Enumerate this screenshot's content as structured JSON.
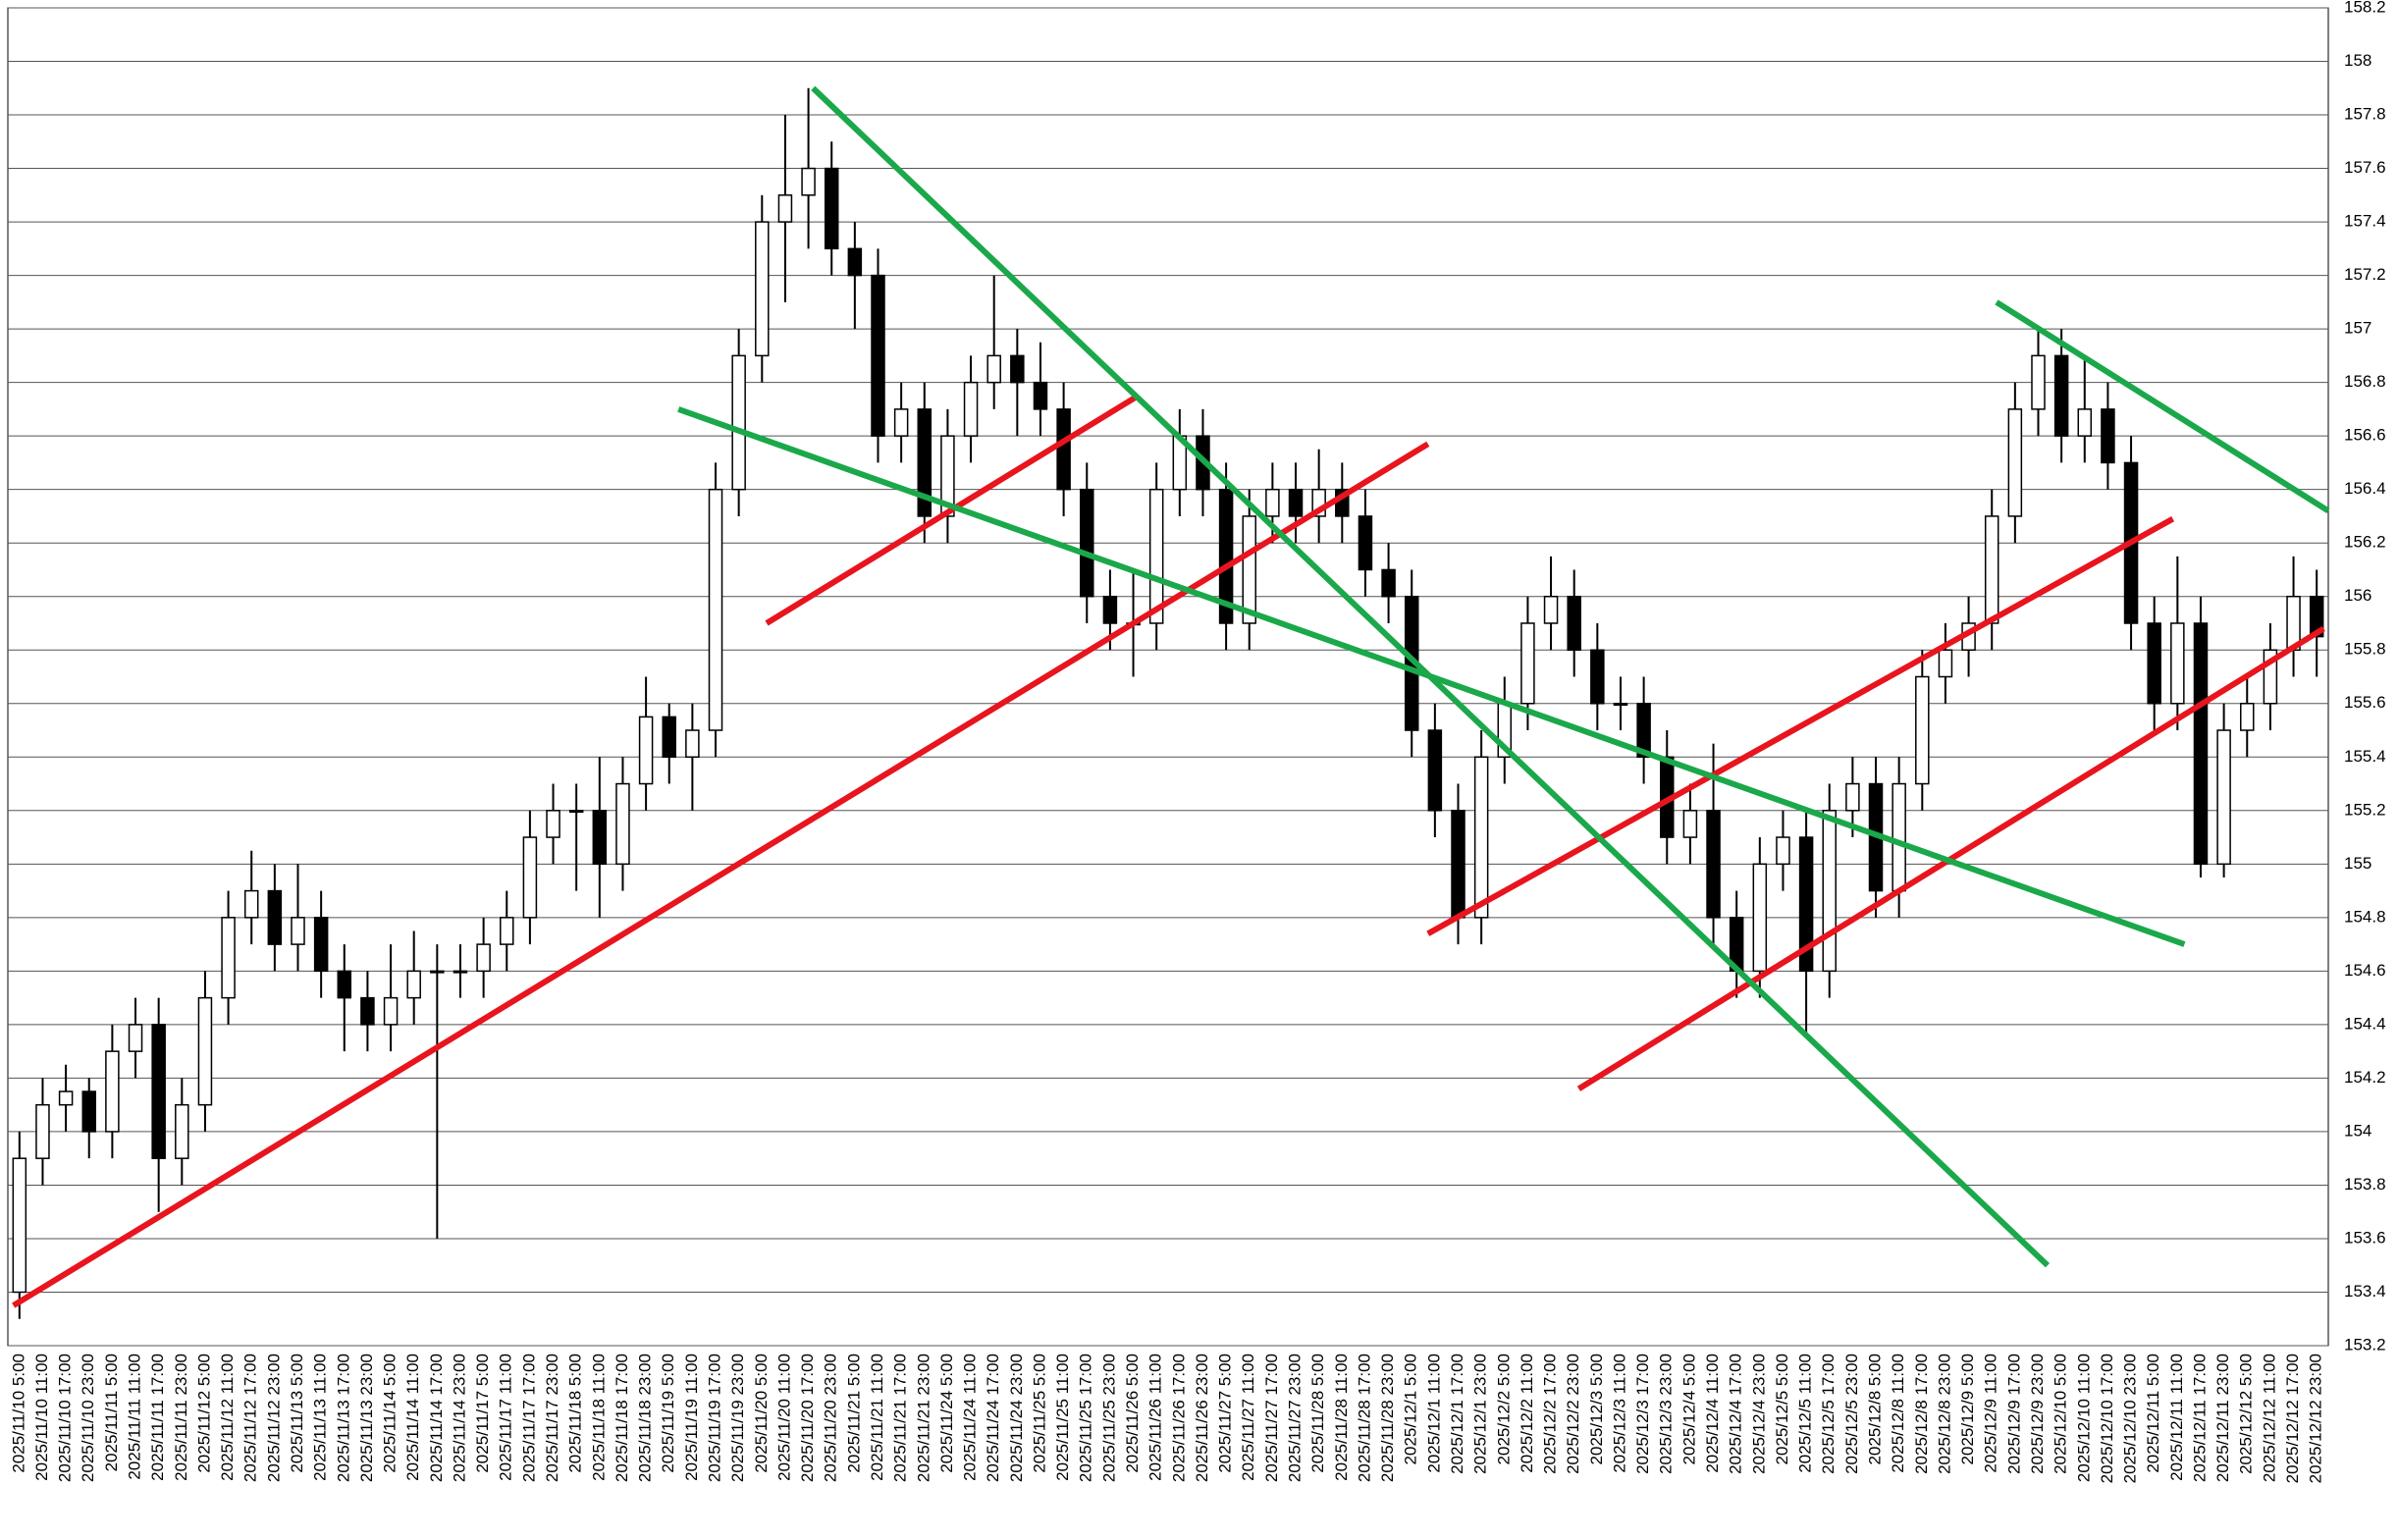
{
  "chart_data": {
    "type": "candlestick",
    "categories": [
      "2025/11/10 5:00",
      "2025/11/10 11:00",
      "2025/11/10 17:00",
      "2025/11/10 23:00",
      "2025/11/11 5:00",
      "2025/11/11 11:00",
      "2025/11/11 17:00",
      "2025/11/11 23:00",
      "2025/11/12 5:00",
      "2025/11/12 11:00",
      "2025/11/12 17:00",
      "2025/11/12 23:00",
      "2025/11/13 5:00",
      "2025/11/13 11:00",
      "2025/11/13 17:00",
      "2025/11/13 23:00",
      "2025/11/14 5:00",
      "2025/11/14 11:00",
      "2025/11/14 17:00",
      "2025/11/14 23:00",
      "2025/11/17 5:00",
      "2025/11/17 11:00",
      "2025/11/17 17:00",
      "2025/11/17 23:00",
      "2025/11/18 5:00",
      "2025/11/18 11:00",
      "2025/11/18 17:00",
      "2025/11/18 23:00",
      "2025/11/19 5:00",
      "2025/11/19 11:00",
      "2025/11/19 17:00",
      "2025/11/19 23:00",
      "2025/11/20 5:00",
      "2025/11/20 11:00",
      "2025/11/20 17:00",
      "2025/11/20 23:00",
      "2025/11/21 5:00",
      "2025/11/21 11:00",
      "2025/11/21 17:00",
      "2025/11/21 23:00",
      "2025/11/24 5:00",
      "2025/11/24 11:00",
      "2025/11/24 17:00",
      "2025/11/24 23:00",
      "2025/11/25 5:00",
      "2025/11/25 11:00",
      "2025/11/25 17:00",
      "2025/11/25 23:00",
      "2025/11/26 5:00",
      "2025/11/26 11:00",
      "2025/11/26 17:00",
      "2025/11/26 23:00",
      "2025/11/27 5:00",
      "2025/11/27 11:00",
      "2025/11/27 17:00",
      "2025/11/27 23:00",
      "2025/11/28 5:00",
      "2025/11/28 11:00",
      "2025/11/28 17:00",
      "2025/11/28 23:00",
      "2025/12/1 5:00",
      "2025/12/1 11:00",
      "2025/12/1 17:00",
      "2025/12/1 23:00",
      "2025/12/2 5:00",
      "2025/12/2 11:00",
      "2025/12/2 17:00",
      "2025/12/2 23:00",
      "2025/12/3 5:00",
      "2025/12/3 11:00",
      "2025/12/3 17:00",
      "2025/12/3 23:00",
      "2025/12/4 5:00",
      "2025/12/4 11:00",
      "2025/12/4 17:00",
      "2025/12/4 23:00",
      "2025/12/5 5:00",
      "2025/12/5 11:00",
      "2025/12/5 17:00",
      "2025/12/5 23:00",
      "2025/12/8 5:00",
      "2025/12/8 11:00",
      "2025/12/8 17:00",
      "2025/12/8 23:00",
      "2025/12/9 5:00",
      "2025/12/9 11:00",
      "2025/12/9 17:00",
      "2025/12/9 23:00",
      "2025/12/10 5:00",
      "2025/12/10 11:00",
      "2025/12/10 17:00",
      "2025/12/10 23:00",
      "2025/12/11 5:00",
      "2025/12/11 11:00",
      "2025/12/11 17:00",
      "2025/12/11 23:00",
      "2025/12/12 5:00",
      "2025/12/12 11:00",
      "2025/12/12 17:00",
      "2025/12/12 23:00"
    ],
    "open": [
      153.4,
      153.9,
      154.1,
      154.15,
      154.0,
      154.3,
      154.4,
      153.9,
      154.1,
      154.5,
      154.8,
      154.9,
      154.7,
      154.8,
      154.6,
      154.5,
      154.4,
      154.5,
      154.6,
      154.6,
      154.6,
      154.7,
      154.8,
      155.1,
      155.2,
      155.2,
      155.0,
      155.3,
      155.55,
      155.4,
      155.5,
      156.4,
      156.9,
      157.4,
      157.5,
      157.6,
      157.3,
      157.2,
      156.6,
      156.7,
      156.3,
      156.6,
      156.8,
      156.9,
      156.8,
      156.7,
      156.4,
      156.0,
      155.9,
      155.9,
      156.4,
      156.6,
      156.4,
      155.9,
      156.3,
      156.4,
      156.3,
      156.4,
      156.3,
      156.1,
      156.0,
      155.5,
      155.2,
      154.8,
      155.4,
      155.6,
      155.9,
      156.0,
      155.8,
      155.6,
      155.6,
      155.4,
      155.1,
      155.2,
      154.8,
      154.6,
      155.0,
      155.1,
      154.6,
      155.2,
      155.3,
      154.9,
      155.3,
      155.7,
      155.8,
      155.9,
      156.3,
      156.7,
      156.9,
      156.6,
      156.7,
      156.5,
      155.9,
      155.6,
      155.9,
      155.0,
      155.5,
      155.6,
      155.8,
      156.0
    ],
    "high": [
      154.0,
      154.2,
      154.25,
      154.2,
      154.4,
      154.5,
      154.5,
      154.2,
      154.6,
      154.9,
      155.05,
      155.0,
      155.0,
      154.9,
      154.7,
      154.6,
      154.7,
      154.75,
      154.7,
      154.7,
      154.8,
      154.9,
      155.2,
      155.3,
      155.3,
      155.4,
      155.4,
      155.7,
      155.6,
      155.6,
      156.5,
      157.0,
      157.5,
      157.8,
      157.9,
      157.7,
      157.4,
      157.3,
      156.8,
      156.8,
      156.7,
      156.9,
      157.2,
      157.0,
      156.95,
      156.8,
      156.5,
      156.1,
      156.1,
      156.5,
      156.7,
      156.7,
      156.5,
      156.4,
      156.5,
      156.5,
      156.55,
      156.5,
      156.4,
      156.2,
      156.1,
      155.6,
      155.3,
      155.5,
      155.7,
      156.0,
      156.15,
      156.1,
      155.9,
      155.7,
      155.7,
      155.5,
      155.3,
      155.45,
      154.9,
      155.1,
      155.2,
      155.2,
      155.3,
      155.4,
      155.4,
      155.4,
      155.8,
      155.9,
      156.0,
      156.4,
      156.8,
      157.0,
      157.0,
      156.9,
      156.8,
      156.6,
      156.0,
      156.15,
      156.0,
      155.6,
      155.7,
      155.9,
      156.15,
      156.1
    ],
    "low": [
      153.3,
      153.8,
      154.0,
      153.9,
      153.9,
      154.2,
      153.7,
      153.8,
      154.0,
      154.4,
      154.7,
      154.6,
      154.6,
      154.5,
      154.3,
      154.3,
      154.3,
      154.4,
      153.6,
      154.5,
      154.5,
      154.6,
      154.7,
      155.0,
      154.9,
      154.8,
      154.9,
      155.2,
      155.3,
      155.2,
      155.4,
      156.3,
      156.8,
      157.1,
      157.3,
      157.2,
      157.0,
      156.5,
      156.5,
      156.2,
      156.2,
      156.5,
      156.7,
      156.6,
      156.6,
      156.3,
      155.9,
      155.8,
      155.7,
      155.8,
      156.3,
      156.3,
      155.8,
      155.8,
      156.2,
      156.2,
      156.2,
      156.2,
      156.0,
      155.9,
      155.4,
      155.1,
      154.7,
      154.7,
      155.3,
      155.5,
      155.8,
      155.7,
      155.5,
      155.5,
      155.3,
      155.0,
      155.0,
      154.7,
      154.5,
      154.5,
      154.9,
      154.35,
      154.5,
      155.1,
      154.8,
      154.8,
      155.2,
      155.6,
      155.7,
      155.8,
      156.2,
      156.6,
      156.5,
      156.5,
      156.4,
      155.8,
      155.5,
      155.5,
      154.95,
      154.95,
      155.4,
      155.5,
      155.7,
      155.7
    ],
    "close": [
      153.9,
      154.1,
      154.15,
      154.0,
      154.3,
      154.4,
      153.9,
      154.1,
      154.5,
      154.8,
      154.9,
      154.7,
      154.8,
      154.6,
      154.5,
      154.4,
      154.5,
      154.6,
      154.6,
      154.6,
      154.7,
      154.8,
      155.1,
      155.2,
      155.2,
      155.0,
      155.3,
      155.55,
      155.4,
      155.5,
      156.4,
      156.9,
      157.4,
      157.5,
      157.6,
      157.3,
      157.2,
      156.6,
      156.7,
      156.3,
      156.6,
      156.8,
      156.9,
      156.8,
      156.7,
      156.4,
      156.0,
      155.9,
      155.9,
      156.4,
      156.6,
      156.4,
      155.9,
      156.3,
      156.4,
      156.3,
      156.4,
      156.3,
      156.1,
      156.0,
      155.5,
      155.2,
      154.8,
      155.4,
      155.6,
      155.9,
      156.0,
      155.8,
      155.6,
      155.6,
      155.4,
      155.1,
      155.2,
      154.8,
      154.6,
      155.0,
      155.1,
      154.6,
      155.2,
      155.3,
      154.9,
      155.3,
      155.7,
      155.8,
      155.9,
      156.3,
      156.7,
      156.9,
      156.6,
      156.7,
      156.5,
      155.9,
      155.6,
      155.9,
      155.0,
      155.5,
      155.6,
      155.8,
      156.0,
      155.85
    ],
    "ylim": [
      153.2,
      158.2
    ],
    "yticks": [
      153.2,
      153.4,
      153.6,
      153.8,
      154,
      154.2,
      154.4,
      154.6,
      154.8,
      155,
      155.2,
      155.4,
      155.6,
      155.8,
      156,
      156.2,
      156.4,
      156.6,
      156.8,
      157,
      157.2,
      157.4,
      157.6,
      157.8,
      158,
      158.2
    ],
    "grid": true,
    "up_color": "#ffffff",
    "down_color": "#000000",
    "trendlines": [
      {
        "color": "#e8141e",
        "points": [
          [
            -0.26,
            153.35
          ],
          [
            60.7,
            156.57
          ]
        ]
      },
      {
        "color": "#e8141e",
        "points": [
          [
            32.2,
            155.9
          ],
          [
            48.2,
            156.75
          ]
        ]
      },
      {
        "color": "#e8141e",
        "points": [
          [
            60.7,
            154.74
          ],
          [
            92.8,
            156.29
          ]
        ]
      },
      {
        "color": "#e8141e",
        "points": [
          [
            67.2,
            154.16
          ],
          [
            99.3,
            155.88
          ]
        ]
      },
      {
        "color": "#1aa84a",
        "points": [
          [
            34.2,
            157.9
          ],
          [
            87.4,
            153.5
          ]
        ]
      },
      {
        "color": "#1aa84a",
        "points": [
          [
            28.4,
            156.7
          ],
          [
            93.3,
            154.7
          ]
        ]
      },
      {
        "color": "#1aa84a",
        "points": [
          [
            85.2,
            157.1
          ],
          [
            99.5,
            156.32
          ]
        ]
      }
    ]
  }
}
